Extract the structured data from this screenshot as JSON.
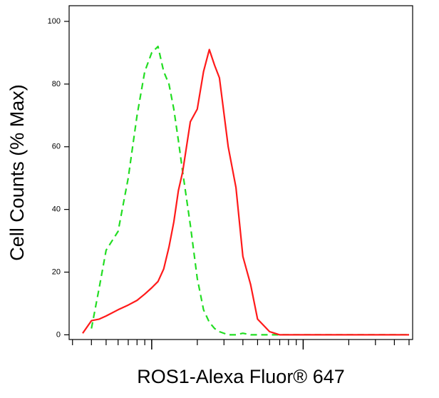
{
  "chart_data": {
    "type": "line",
    "x_label": "ROS1-Alexa Fluor® 647",
    "y_label": "Cell Counts (% Max)",
    "x": [
      3,
      3.5,
      4,
      4.5,
      5,
      6,
      7,
      8,
      9,
      10,
      11,
      12,
      13,
      14,
      15,
      16,
      18,
      20,
      22,
      24,
      26,
      28,
      32,
      36,
      40,
      45,
      50,
      60,
      70,
      80,
      100,
      150,
      200,
      300,
      500
    ],
    "series": [
      {
        "color": "#22dd22",
        "dashed": true,
        "values": [
          null,
          null,
          2,
          15,
          27,
          33,
          50,
          70,
          84,
          90,
          92,
          84,
          80,
          72,
          62,
          52,
          35,
          18,
          8,
          4,
          2,
          1,
          0,
          0,
          0.5,
          0,
          0,
          0,
          0,
          0,
          0,
          0,
          0,
          0,
          0
        ]
      },
      {
        "color": "#ff1a1a",
        "dashed": false,
        "values": [
          null,
          0.5,
          4.5,
          5,
          6,
          8,
          9.5,
          11,
          13,
          15,
          17,
          21,
          28,
          36,
          46,
          52,
          68,
          72,
          84,
          91,
          86,
          82,
          60,
          47,
          25,
          16,
          5,
          1,
          0,
          0,
          0,
          0,
          0,
          0,
          0
        ]
      }
    ],
    "xscale": "log",
    "xlim": [
      2.85,
      528
    ],
    "xticks": [
      10,
      100
    ],
    "xminorticks": [
      3,
      4,
      5,
      6,
      7,
      8,
      9,
      20,
      30,
      40,
      50,
      60,
      70,
      80,
      90,
      200,
      300,
      400,
      500
    ],
    "ylim": [
      -1.5,
      105
    ],
    "yticks": [
      0,
      20,
      40,
      60,
      80,
      100
    ]
  }
}
